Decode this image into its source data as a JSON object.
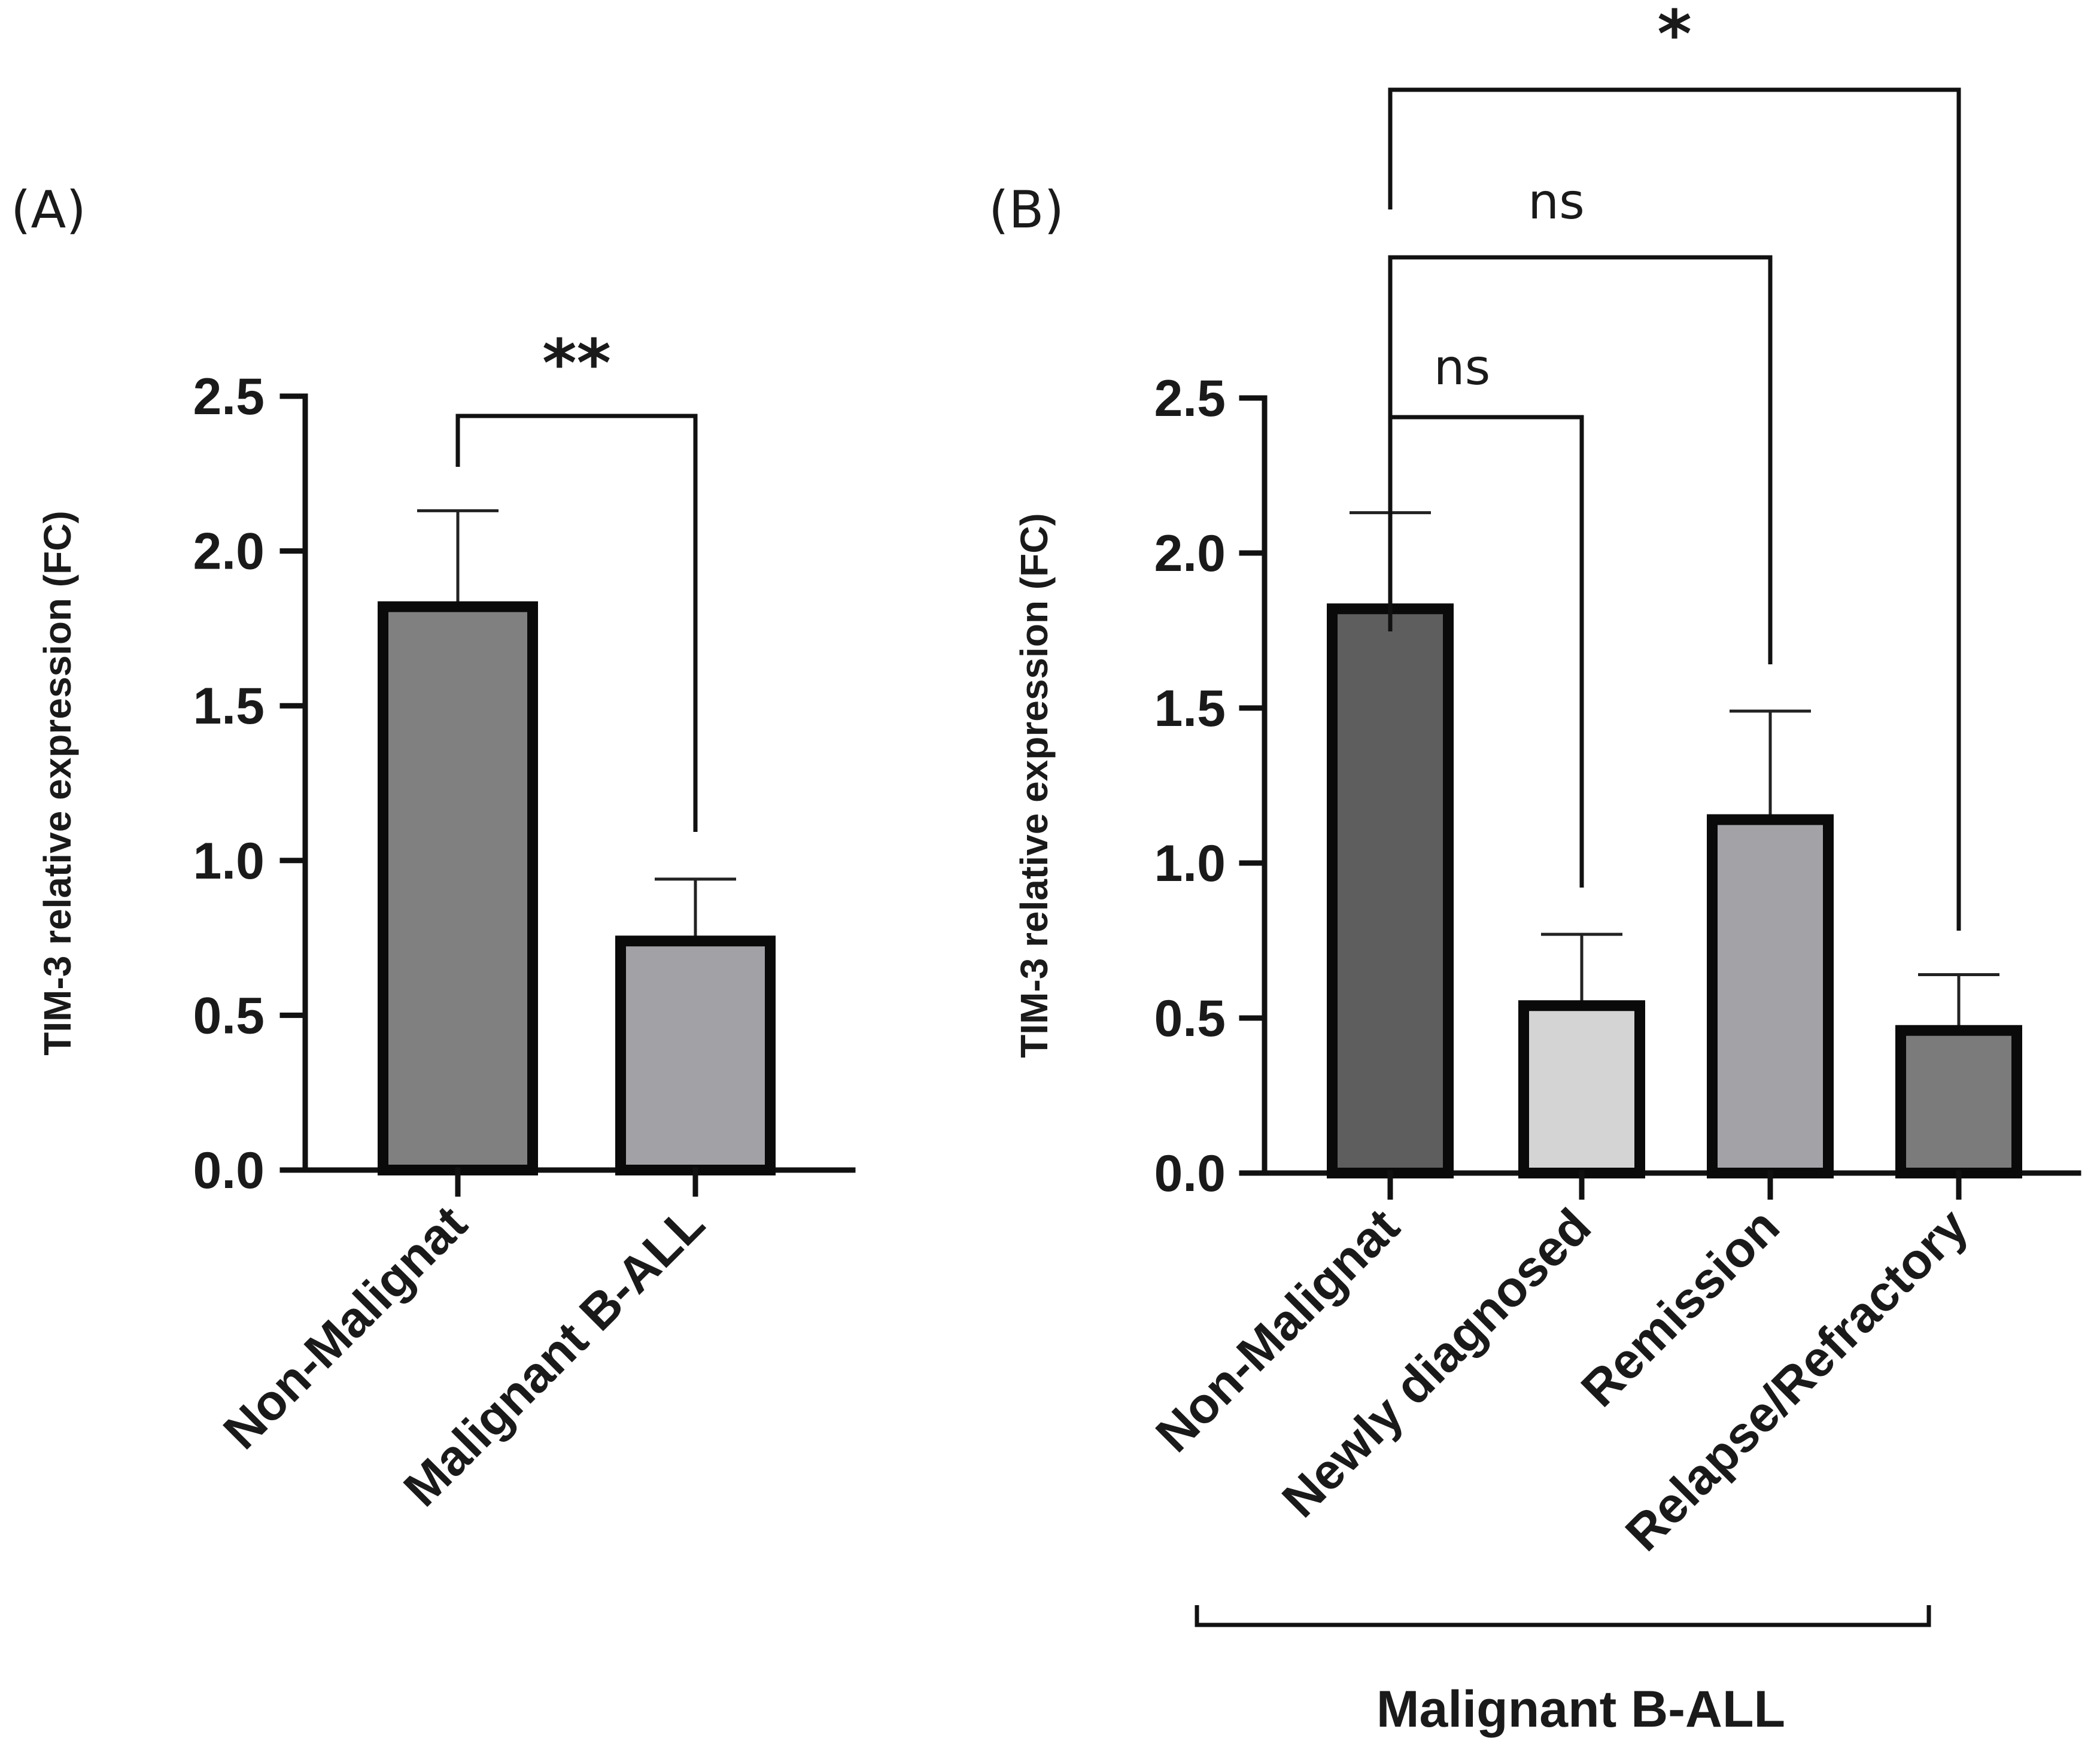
{
  "chart_data": [
    {
      "panel": "(A)",
      "type": "bar",
      "ylabel": "TIM-3 relative expression (FC)",
      "ylim": [
        0,
        2.5
      ],
      "yticks": [
        "0.0",
        "0.5",
        "1.0",
        "1.5",
        "2.0",
        "2.5"
      ],
      "categories": [
        "Non-Malignat",
        "Malignant B-ALL"
      ],
      "values": [
        1.82,
        0.74
      ],
      "errors": [
        0.31,
        0.2
      ],
      "colors": [
        "#808080",
        "#a2a1a6"
      ],
      "comparisons": [
        {
          "from": 0,
          "to": 1,
          "label": "**"
        }
      ]
    },
    {
      "panel": "(B)",
      "type": "bar",
      "ylabel": "TIM-3 relative expression (FC)",
      "ylim": [
        0,
        2.5
      ],
      "yticks": [
        "0.0",
        "0.5",
        "1.0",
        "1.5",
        "2.0",
        "2.5"
      ],
      "categories": [
        "Non-Malignat",
        "Newly diagnosed",
        "Remission",
        "Relapse/Refractory"
      ],
      "values": [
        1.82,
        0.54,
        1.14,
        0.46
      ],
      "errors": [
        0.31,
        0.23,
        0.35,
        0.18
      ],
      "colors": [
        "#5e5e5e",
        "#d4d4d4",
        "#a3a2a6",
        "#7b7b7b"
      ],
      "comparisons": [
        {
          "from": 0,
          "to": 1,
          "label": "ns"
        },
        {
          "from": 0,
          "to": 2,
          "label": "ns"
        },
        {
          "from": 0,
          "to": 3,
          "label": "*"
        }
      ],
      "group": {
        "label": "Malignant B-ALL",
        "from": 1,
        "to": 3
      }
    }
  ]
}
